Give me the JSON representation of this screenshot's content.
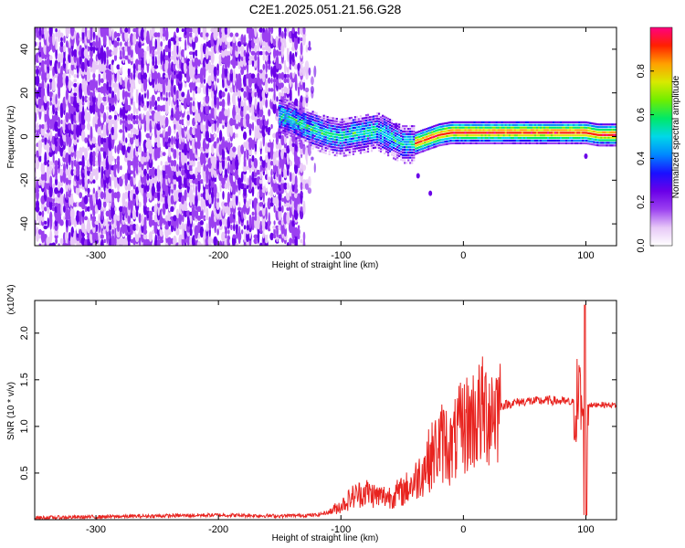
{
  "title": "C2E1.2025.051.21.56.G28",
  "chart_data": [
    {
      "type": "heatmap",
      "xlabel": "Height of straight line (km)",
      "ylabel": "Frequency (Hz)",
      "xlim": [
        -350,
        125
      ],
      "ylim": [
        -50,
        50
      ],
      "x_ticks": [
        -300,
        -200,
        -100,
        0,
        100
      ],
      "y_ticks": [
        -40,
        -20,
        0,
        20,
        40
      ],
      "colorbar": {
        "label": "Normalized spectral amplitude",
        "range": [
          0,
          1
        ],
        "ticks": [
          "0.0",
          "0.2",
          "0.4",
          "0.6",
          "0.8"
        ],
        "colors": [
          "#ffffff",
          "#e7c8f7",
          "#9b40f0",
          "#6a00e8",
          "#1a10ff",
          "#0088ff",
          "#00d8e8",
          "#00e868",
          "#70ee00",
          "#d8ea00",
          "#ffa000",
          "#ff2000",
          "#ff0080"
        ]
      },
      "description_regions": [
        {
          "x_range": [
            -350,
            -135
          ],
          "pattern": "broadband noise across all frequencies",
          "amplitude": [
            0.0,
            0.2
          ]
        },
        {
          "x_range": [
            -150,
            -40
          ],
          "pattern": "signal trace near 0 Hz, drifting from +10 Hz to -5 Hz",
          "amplitude": [
            0.2,
            0.6
          ]
        },
        {
          "x_range": [
            -40,
            125
          ],
          "pattern": "narrow stable trace at ~0 to 2 Hz",
          "amplitude": [
            0.4,
            1.0
          ]
        }
      ],
      "trace": {
        "x": [
          -150,
          -140,
          -130,
          -120,
          -110,
          -100,
          -90,
          -80,
          -70,
          -60,
          -50,
          -40,
          -30,
          -20,
          -10,
          0,
          20,
          40,
          60,
          80,
          95,
          100,
          110,
          125
        ],
        "y": [
          10,
          8,
          5,
          3,
          1,
          0,
          1,
          2,
          3,
          0,
          -3,
          -3,
          -1,
          1,
          2,
          2,
          2,
          2,
          2,
          2,
          2,
          2,
          1,
          1
        ]
      }
    },
    {
      "type": "line",
      "xlabel": "Height of straight line (km)",
      "ylabel": "SNR (10 * v/v)",
      "y_multiplier": "(x10^4)",
      "xlim": [
        -350,
        125
      ],
      "ylim": [
        0,
        2.35
      ],
      "x_ticks": [
        -300,
        -200,
        -100,
        0,
        100
      ],
      "y_ticks": [
        "0.5",
        "1.0",
        "1.5",
        "2.0"
      ],
      "color": "#e8231f",
      "series": [
        {
          "x": [
            -350,
            -300,
            -250,
            -200,
            -150,
            -120,
            -110,
            -100,
            -90,
            -80,
            -70,
            -60,
            -50,
            -40,
            -30,
            -20,
            -15,
            -10,
            -5,
            0,
            5,
            10,
            20,
            30,
            40,
            50,
            60,
            70,
            80,
            90,
            95,
            98,
            100,
            102,
            105,
            110,
            115,
            125
          ],
          "y": [
            0.02,
            0.03,
            0.04,
            0.05,
            0.04,
            0.05,
            0.08,
            0.15,
            0.25,
            0.3,
            0.25,
            0.25,
            0.3,
            0.4,
            0.6,
            0.8,
            0.85,
            0.75,
            0.9,
            1.0,
            1.05,
            1.1,
            1.18,
            1.22,
            1.25,
            1.27,
            1.27,
            1.28,
            1.27,
            1.25,
            1.3,
            1.1,
            0.2,
            1.25,
            1.22,
            1.24,
            1.23,
            1.23
          ]
        }
      ]
    }
  ]
}
